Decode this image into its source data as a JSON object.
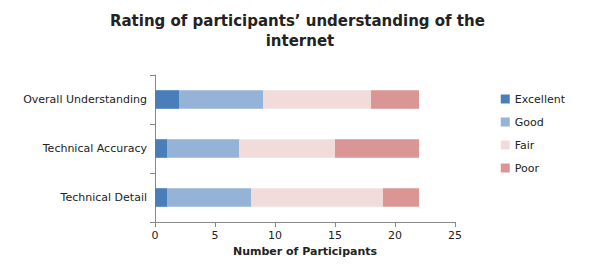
{
  "chart_data": {
    "type": "bar",
    "title": "Rating of participants’ understanding of the internet",
    "orientation": "horizontal",
    "stacked": true,
    "categories": [
      "Overall Understanding",
      "Technical Accuracy",
      "Technical Detail"
    ],
    "series": [
      {
        "name": "Excellent",
        "color": "#4a7ebb",
        "values": [
          2,
          1,
          1
        ]
      },
      {
        "name": "Good",
        "color": "#95b3d7",
        "values": [
          7,
          6,
          7
        ]
      },
      {
        "name": "Fair",
        "color": "#f2dcdb",
        "values": [
          9,
          8,
          11
        ]
      },
      {
        "name": "Poor",
        "color": "#d99694",
        "values": [
          4,
          7,
          3
        ]
      }
    ],
    "xlim": [
      0,
      25
    ],
    "xticks": [
      0,
      5,
      10,
      15,
      20,
      25
    ],
    "x_label": "Number of Participants",
    "grid": false,
    "legend": "right"
  }
}
